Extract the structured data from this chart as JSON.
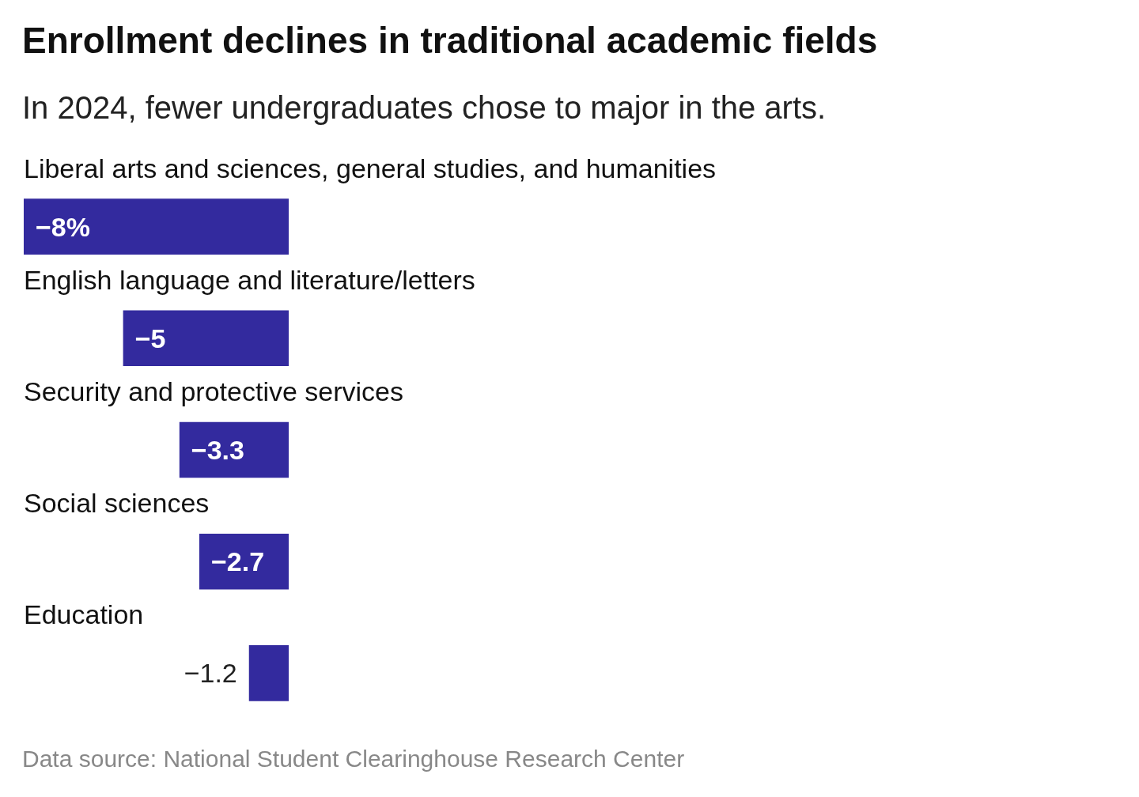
{
  "chart_data": {
    "type": "bar",
    "orientation": "horizontal",
    "title": "Enrollment declines in traditional academic fields",
    "subtitle": "In 2024, fewer undergraduates chose to major in the arts.",
    "categories": [
      "Liberal arts and sciences, general studies, and humanities",
      "English language and literature/letters",
      "Security and protective services",
      "Social sciences",
      "Education"
    ],
    "values": [
      -8,
      -5,
      -3.3,
      -2.7,
      -1.2
    ],
    "value_labels": [
      "−8%",
      "−5",
      "−3.3",
      "−2.7",
      "−1.2"
    ],
    "color": "#332a9e",
    "tick_labels": "y",
    "annotations": [
      "Data source: National Student Clearinghouse Research Center"
    ]
  }
}
